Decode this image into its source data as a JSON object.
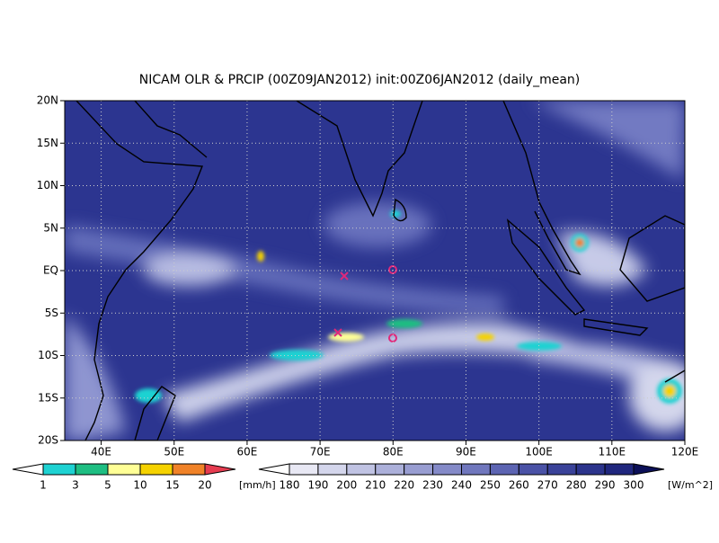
{
  "title": "NICAM OLR & PRCIP (00Z09JAN2012) init:00Z06JAN2012 (daily_mean)",
  "map": {
    "xlim": [
      35,
      120
    ],
    "ylim": [
      -20,
      20
    ],
    "xticks": [
      {
        "value": 40,
        "label": "40E"
      },
      {
        "value": 50,
        "label": "50E"
      },
      {
        "value": 60,
        "label": "60E"
      },
      {
        "value": 70,
        "label": "70E"
      },
      {
        "value": 80,
        "label": "80E"
      },
      {
        "value": 90,
        "label": "90E"
      },
      {
        "value": 100,
        "label": "100E"
      },
      {
        "value": 110,
        "label": "110E"
      },
      {
        "value": 120,
        "label": "120E"
      }
    ],
    "yticks": [
      {
        "value": -20,
        "label": "20S"
      },
      {
        "value": -15,
        "label": "15S"
      },
      {
        "value": -10,
        "label": "10S"
      },
      {
        "value": -5,
        "label": "5S"
      },
      {
        "value": 0,
        "label": "EQ"
      },
      {
        "value": 5,
        "label": "5N"
      },
      {
        "value": 10,
        "label": "10N"
      },
      {
        "value": 15,
        "label": "15N"
      },
      {
        "value": 20,
        "label": "20N"
      }
    ]
  },
  "precip_legend": {
    "labels": [
      1,
      3,
      5,
      10,
      15,
      20
    ],
    "unit": "[mm/h]",
    "colors": [
      "#ffffff",
      "#1ed2d2",
      "#1ebe82",
      "#ffff96",
      "#f5d200",
      "#f08228",
      "#e63c50"
    ]
  },
  "olr_legend": {
    "labels": [
      180,
      190,
      200,
      210,
      220,
      230,
      240,
      250,
      260,
      270,
      280,
      290,
      300
    ],
    "unit": "[W/m^2]",
    "colors": [
      "#ffffff",
      "#e8e8f4",
      "#d4d6ec",
      "#c0c3e3",
      "#acb0da",
      "#989dd1",
      "#848ac8",
      "#7077bd",
      "#5c64b2",
      "#4a52a6",
      "#3a4299",
      "#2c348c",
      "#20277e",
      "#141a6a",
      "#0c1058"
    ]
  }
}
